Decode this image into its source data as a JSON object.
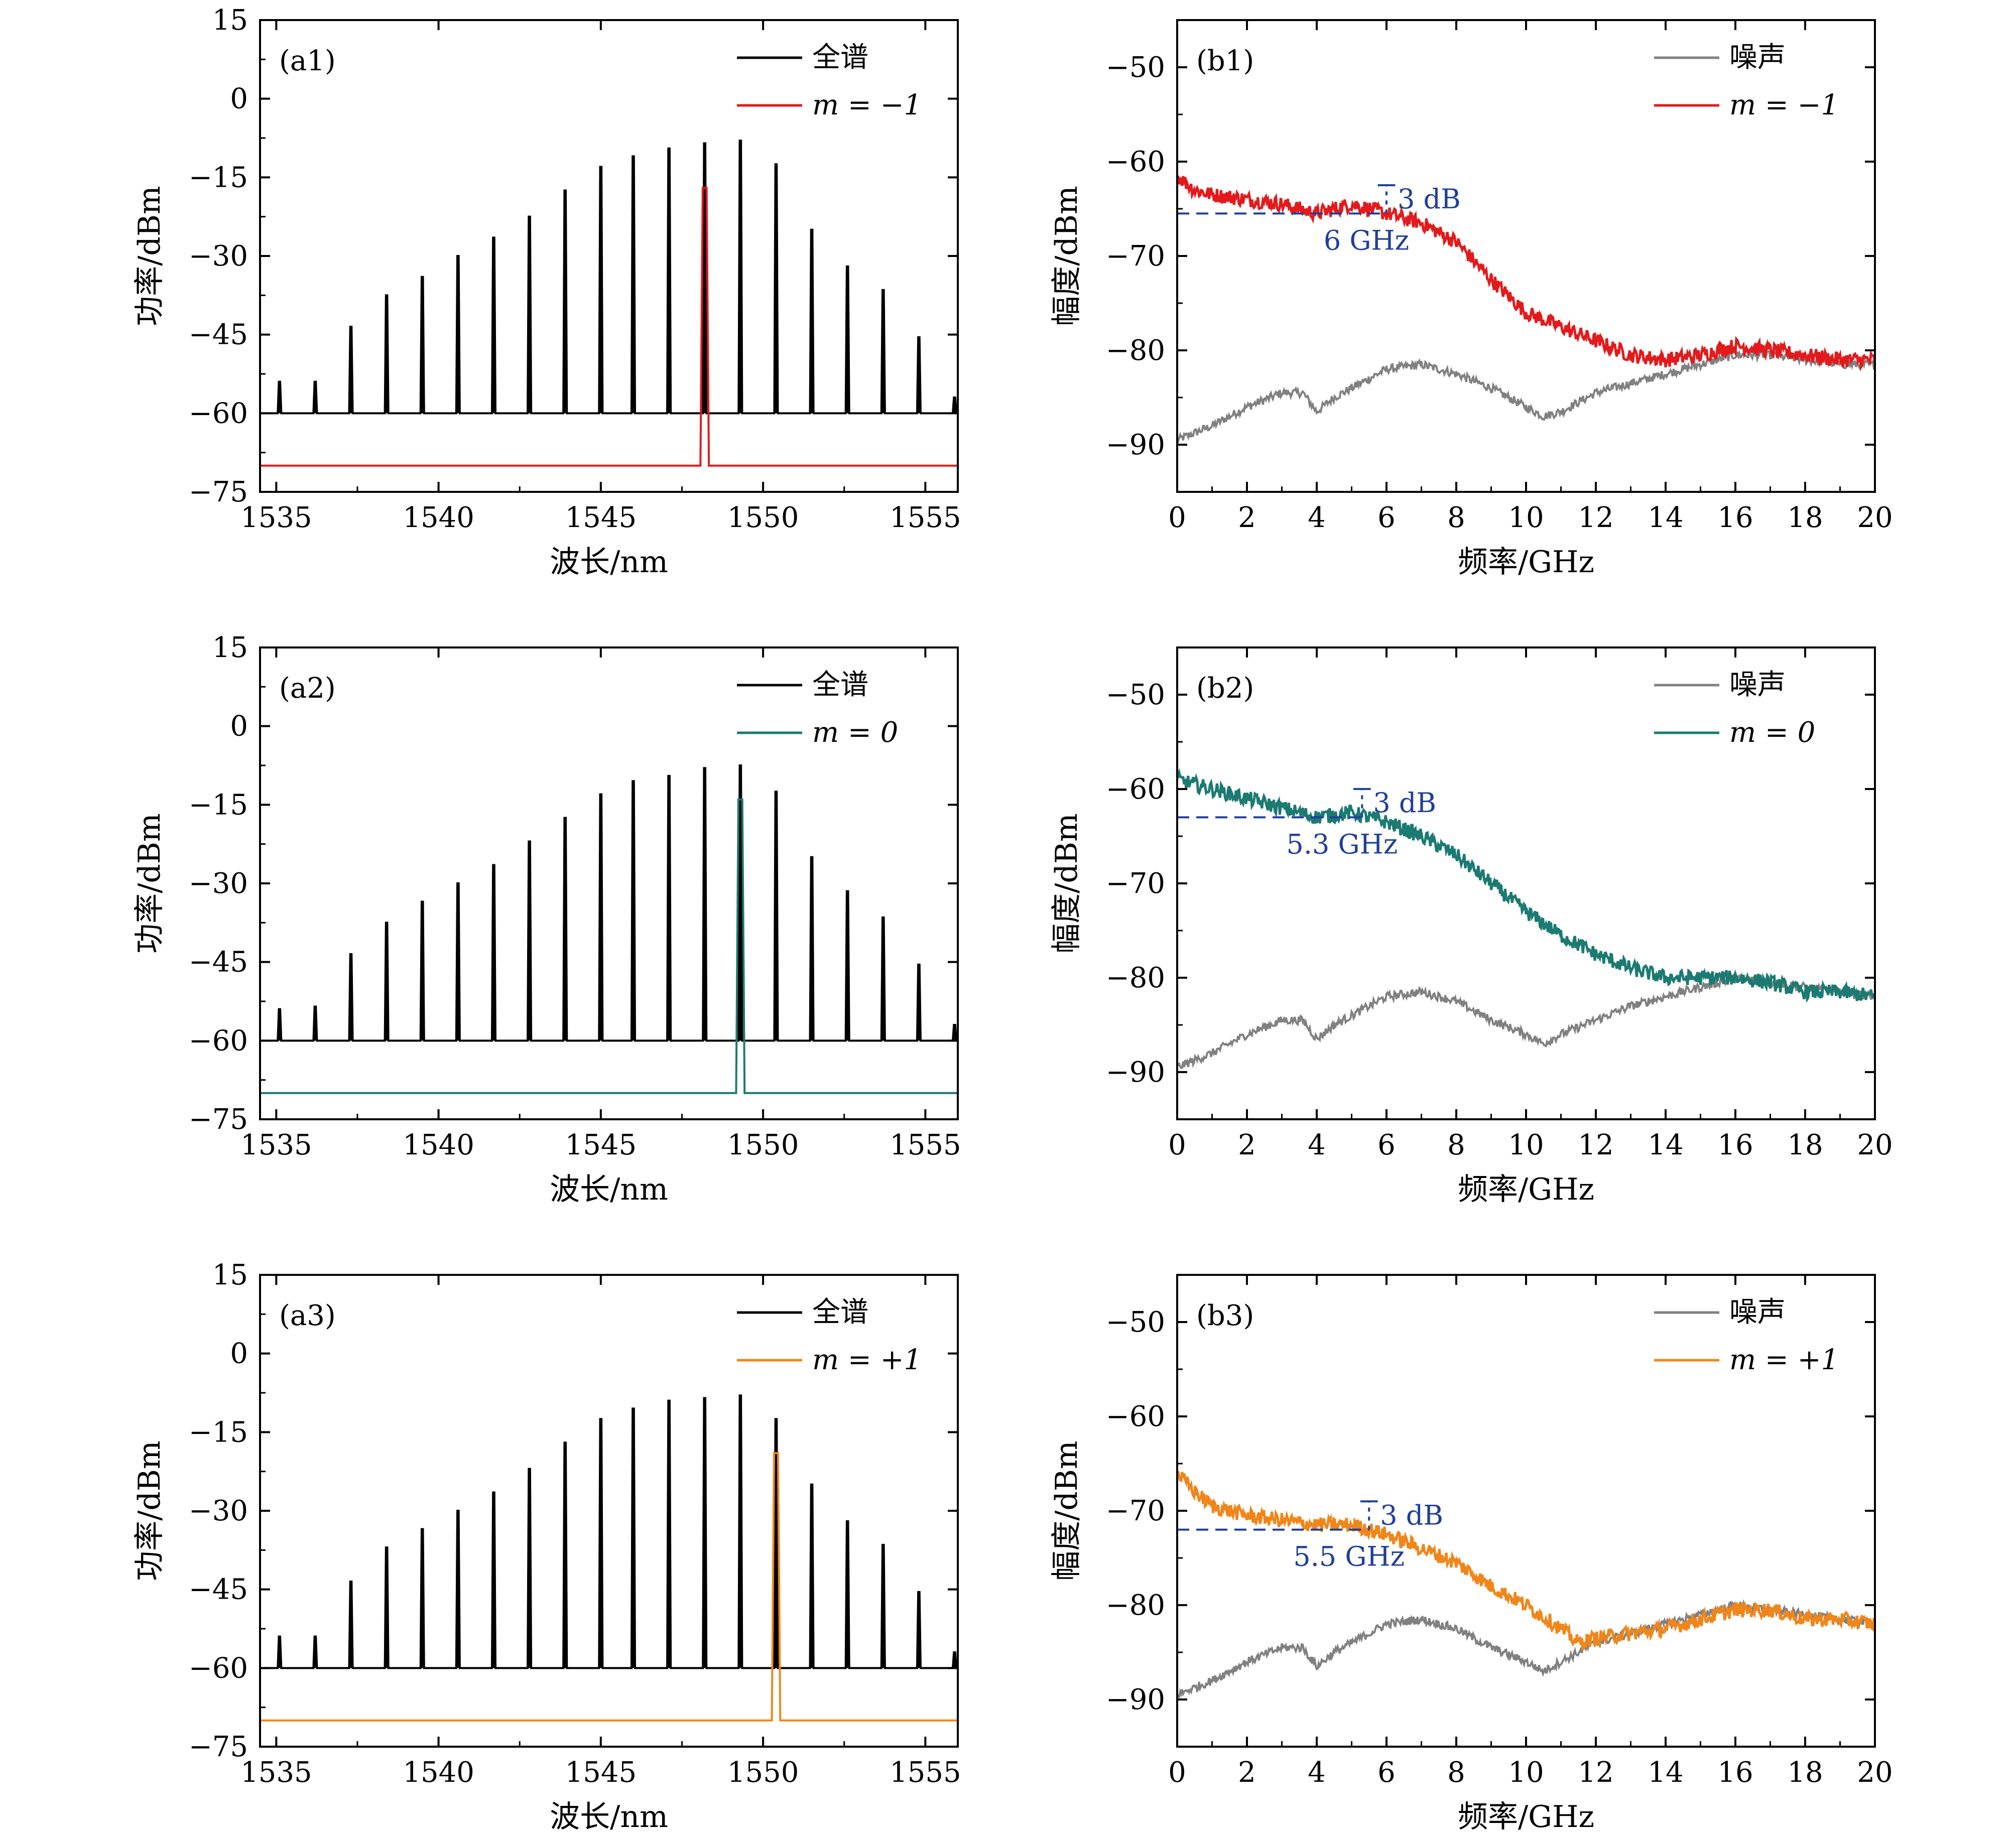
{
  "figure": {
    "panels_order": [
      "a1",
      "b1",
      "a2",
      "b2",
      "a3",
      "b3"
    ]
  },
  "colors": {
    "full_spectrum": "#000000",
    "m_minus1": "#e31a1c",
    "m_0": "#1b7a72",
    "m_plus1": "#f0861a",
    "noise": "#808080",
    "annotation": "#1f3f99"
  },
  "chart_data": [
    {
      "id": "a1",
      "type": "line",
      "panel_label": "(a1)",
      "xlabel": "波长/nm",
      "ylabel": "功率/dBm",
      "xlim": [
        1534.5,
        1556
      ],
      "ylim": [
        -75,
        15
      ],
      "xticks": [
        1535,
        1540,
        1545,
        1550,
        1555
      ],
      "yticks": [
        15,
        0,
        -15,
        -30,
        -45,
        -60,
        -75
      ],
      "comb": {
        "baseline": -60,
        "lines": [
          {
            "x": 1535.1,
            "y": -54
          },
          {
            "x": 1536.2,
            "y": -54
          },
          {
            "x": 1537.3,
            "y": -43.5
          },
          {
            "x": 1538.4,
            "y": -37.5
          },
          {
            "x": 1539.5,
            "y": -34
          },
          {
            "x": 1540.6,
            "y": -30
          },
          {
            "x": 1541.7,
            "y": -26.5
          },
          {
            "x": 1542.8,
            "y": -22.5
          },
          {
            "x": 1543.9,
            "y": -17.5
          },
          {
            "x": 1545.0,
            "y": -13
          },
          {
            "x": 1546.0,
            "y": -11
          },
          {
            "x": 1547.1,
            "y": -9.5
          },
          {
            "x": 1548.2,
            "y": -8.5
          },
          {
            "x": 1549.3,
            "y": -8
          },
          {
            "x": 1550.4,
            "y": -12.5
          },
          {
            "x": 1551.5,
            "y": -25
          },
          {
            "x": 1552.6,
            "y": -32
          },
          {
            "x": 1553.7,
            "y": -36.5
          },
          {
            "x": 1554.8,
            "y": -45.5
          },
          {
            "x": 1555.9,
            "y": -57
          }
        ]
      },
      "filtered": {
        "x": 1548.2,
        "peak": -17,
        "baseline": -70
      },
      "legend": [
        {
          "label": "全谱",
          "color_key": "full_spectrum",
          "italic": false
        },
        {
          "label": "m = −1",
          "color_key": "m_minus1",
          "italic": true
        }
      ]
    },
    {
      "id": "b1",
      "type": "line",
      "panel_label": "(b1)",
      "xlabel": "频率/GHz",
      "ylabel": "幅度/dBm",
      "xlim": [
        0,
        20
      ],
      "ylim": [
        -95,
        -45
      ],
      "xticks": [
        0,
        2,
        4,
        6,
        8,
        10,
        12,
        14,
        16,
        18,
        20
      ],
      "yticks": [
        -50,
        -60,
        -70,
        -80,
        -90
      ],
      "signal": [
        [
          0,
          -61.5
        ],
        [
          0.5,
          -63
        ],
        [
          1,
          -63.5
        ],
        [
          2,
          -64
        ],
        [
          3,
          -64.5
        ],
        [
          4,
          -65.5
        ],
        [
          5,
          -64.5
        ],
        [
          6,
          -65.5
        ],
        [
          7,
          -66.5
        ],
        [
          8,
          -68.5
        ],
        [
          9,
          -72.5
        ],
        [
          10,
          -76
        ],
        [
          11,
          -77.5
        ],
        [
          12,
          -79
        ],
        [
          13,
          -80.5
        ],
        [
          14,
          -81
        ],
        [
          15,
          -80.5
        ],
        [
          16,
          -79.5
        ],
        [
          17,
          -80
        ],
        [
          18,
          -80.5
        ],
        [
          19,
          -81
        ],
        [
          20,
          -81
        ]
      ],
      "noise": [
        [
          0,
          -89.5
        ],
        [
          1,
          -88
        ],
        [
          2,
          -86
        ],
        [
          3,
          -84.5
        ],
        [
          3.6,
          -84.5
        ],
        [
          4,
          -86.5
        ],
        [
          4.5,
          -85
        ],
        [
          5,
          -84
        ],
        [
          6,
          -82
        ],
        [
          7,
          -81.5
        ],
        [
          8,
          -82.5
        ],
        [
          9,
          -84
        ],
        [
          10,
          -86
        ],
        [
          10.5,
          -87
        ],
        [
          11,
          -86.5
        ],
        [
          12,
          -84.5
        ],
        [
          13,
          -83.5
        ],
        [
          14,
          -82.5
        ],
        [
          15,
          -81.5
        ],
        [
          16,
          -80.5
        ],
        [
          17,
          -80.5
        ],
        [
          18,
          -81
        ],
        [
          19,
          -81.5
        ],
        [
          20,
          -81.5
        ]
      ],
      "annotation": {
        "freq": 6,
        "level_3db": -65.5,
        "db_text": "3 dB",
        "freq_text": "6 GHz"
      },
      "legend": [
        {
          "label": "噪声",
          "color_key": "noise",
          "italic": false
        },
        {
          "label": "m = −1",
          "color_key": "m_minus1",
          "italic": true
        }
      ]
    },
    {
      "id": "a2",
      "type": "line",
      "panel_label": "(a2)",
      "xlabel": "波长/nm",
      "ylabel": "功率/dBm",
      "xlim": [
        1534.5,
        1556
      ],
      "ylim": [
        -75,
        15
      ],
      "xticks": [
        1535,
        1540,
        1545,
        1550,
        1555
      ],
      "yticks": [
        15,
        0,
        -15,
        -30,
        -45,
        -60,
        -75
      ],
      "comb": {
        "baseline": -60,
        "lines": [
          {
            "x": 1535.1,
            "y": -54
          },
          {
            "x": 1536.2,
            "y": -53.5
          },
          {
            "x": 1537.3,
            "y": -43.5
          },
          {
            "x": 1538.4,
            "y": -37.5
          },
          {
            "x": 1539.5,
            "y": -33.5
          },
          {
            "x": 1540.6,
            "y": -30
          },
          {
            "x": 1541.7,
            "y": -26.5
          },
          {
            "x": 1542.8,
            "y": -22
          },
          {
            "x": 1543.9,
            "y": -17.5
          },
          {
            "x": 1545.0,
            "y": -13
          },
          {
            "x": 1546.0,
            "y": -10.5
          },
          {
            "x": 1547.1,
            "y": -9.5
          },
          {
            "x": 1548.2,
            "y": -8
          },
          {
            "x": 1549.3,
            "y": -7.5
          },
          {
            "x": 1550.4,
            "y": -12.5
          },
          {
            "x": 1551.5,
            "y": -25
          },
          {
            "x": 1552.6,
            "y": -31.5
          },
          {
            "x": 1553.7,
            "y": -36.5
          },
          {
            "x": 1554.8,
            "y": -45.5
          },
          {
            "x": 1555.9,
            "y": -57
          }
        ]
      },
      "filtered": {
        "x": 1549.3,
        "peak": -14,
        "baseline": -70
      },
      "legend": [
        {
          "label": "全谱",
          "color_key": "full_spectrum",
          "italic": false
        },
        {
          "label": "m = 0",
          "color_key": "m_0",
          "italic": true
        }
      ]
    },
    {
      "id": "b2",
      "type": "line",
      "panel_label": "(b2)",
      "xlabel": "频率/GHz",
      "ylabel": "幅度/dBm",
      "xlim": [
        0,
        20
      ],
      "ylim": [
        -95,
        -45
      ],
      "xticks": [
        0,
        2,
        4,
        6,
        8,
        10,
        12,
        14,
        16,
        18,
        20
      ],
      "yticks": [
        -50,
        -60,
        -70,
        -80,
        -90
      ],
      "signal": [
        [
          0,
          -59
        ],
        [
          1,
          -60
        ],
        [
          2,
          -61
        ],
        [
          3,
          -62
        ],
        [
          4,
          -63
        ],
        [
          5,
          -62.5
        ],
        [
          6,
          -63.5
        ],
        [
          7,
          -65
        ],
        [
          8,
          -67
        ],
        [
          9,
          -70
        ],
        [
          10,
          -73
        ],
        [
          11,
          -75.5
        ],
        [
          12,
          -77.5
        ],
        [
          13,
          -79
        ],
        [
          14,
          -80
        ],
        [
          15,
          -80
        ],
        [
          16,
          -80
        ],
        [
          17,
          -80.5
        ],
        [
          18,
          -81.5
        ],
        [
          19,
          -81.5
        ],
        [
          20,
          -82
        ]
      ],
      "noise": [
        [
          0,
          -89.5
        ],
        [
          1,
          -88
        ],
        [
          2,
          -86
        ],
        [
          3,
          -84.5
        ],
        [
          3.6,
          -84.5
        ],
        [
          4,
          -86.5
        ],
        [
          4.5,
          -85
        ],
        [
          5,
          -84
        ],
        [
          6,
          -82
        ],
        [
          7,
          -81.5
        ],
        [
          8,
          -82.5
        ],
        [
          9,
          -84.5
        ],
        [
          10,
          -86
        ],
        [
          10.5,
          -87
        ],
        [
          11,
          -86
        ],
        [
          12,
          -84.5
        ],
        [
          13,
          -83
        ],
        [
          14,
          -82
        ],
        [
          15,
          -81
        ],
        [
          16,
          -80
        ],
        [
          17,
          -80.5
        ],
        [
          18,
          -81
        ],
        [
          19,
          -81.5
        ],
        [
          20,
          -82
        ]
      ],
      "annotation": {
        "freq": 5.3,
        "level_3db": -63,
        "db_text": "3 dB",
        "freq_text": "5.3 GHz"
      },
      "legend": [
        {
          "label": "噪声",
          "color_key": "noise",
          "italic": false
        },
        {
          "label": "m = 0",
          "color_key": "m_0",
          "italic": true
        }
      ]
    },
    {
      "id": "a3",
      "type": "line",
      "panel_label": "(a3)",
      "xlabel": "波长/nm",
      "ylabel": "功率/dBm",
      "xlim": [
        1534.5,
        1556
      ],
      "ylim": [
        -75,
        15
      ],
      "xticks": [
        1535,
        1540,
        1545,
        1550,
        1555
      ],
      "yticks": [
        15,
        0,
        -15,
        -30,
        -45,
        -60,
        -75
      ],
      "comb": {
        "baseline": -60,
        "lines": [
          {
            "x": 1535.1,
            "y": -54
          },
          {
            "x": 1536.2,
            "y": -54
          },
          {
            "x": 1537.3,
            "y": -43.5
          },
          {
            "x": 1538.4,
            "y": -37
          },
          {
            "x": 1539.5,
            "y": -33.5
          },
          {
            "x": 1540.6,
            "y": -30
          },
          {
            "x": 1541.7,
            "y": -26.5
          },
          {
            "x": 1542.8,
            "y": -22
          },
          {
            "x": 1543.9,
            "y": -17
          },
          {
            "x": 1545.0,
            "y": -12.5
          },
          {
            "x": 1546.0,
            "y": -10.5
          },
          {
            "x": 1547.1,
            "y": -9
          },
          {
            "x": 1548.2,
            "y": -8.5
          },
          {
            "x": 1549.3,
            "y": -8
          },
          {
            "x": 1550.4,
            "y": -12.5
          },
          {
            "x": 1551.5,
            "y": -25
          },
          {
            "x": 1552.6,
            "y": -32
          },
          {
            "x": 1553.7,
            "y": -36.5
          },
          {
            "x": 1554.8,
            "y": -45.5
          },
          {
            "x": 1555.9,
            "y": -57
          }
        ]
      },
      "filtered": {
        "x": 1550.4,
        "peak": -19,
        "baseline": -70
      },
      "legend": [
        {
          "label": "全谱",
          "color_key": "full_spectrum",
          "italic": false
        },
        {
          "label": "m = +1",
          "color_key": "m_plus1",
          "italic": true
        }
      ]
    },
    {
      "id": "b3",
      "type": "line",
      "panel_label": "(b3)",
      "xlabel": "频率/GHz",
      "ylabel": "幅度/dBm",
      "xlim": [
        0,
        20
      ],
      "ylim": [
        -95,
        -45
      ],
      "xticks": [
        0,
        2,
        4,
        6,
        8,
        10,
        12,
        14,
        16,
        18,
        20
      ],
      "yticks": [
        -50,
        -60,
        -70,
        -80,
        -90
      ],
      "signal": [
        [
          0,
          -66
        ],
        [
          0.5,
          -68
        ],
        [
          1,
          -69.5
        ],
        [
          2,
          -70.5
        ],
        [
          3,
          -71
        ],
        [
          4,
          -71.5
        ],
        [
          5,
          -71.5
        ],
        [
          6,
          -72.5
        ],
        [
          7,
          -74
        ],
        [
          8,
          -75.5
        ],
        [
          9,
          -78
        ],
        [
          10,
          -80
        ],
        [
          11,
          -82.5
        ],
        [
          11.5,
          -84
        ],
        [
          12,
          -83.5
        ],
        [
          13,
          -83
        ],
        [
          14,
          -82.5
        ],
        [
          15,
          -81.5
        ],
        [
          16,
          -80.5
        ],
        [
          17,
          -80.5
        ],
        [
          18,
          -81.5
        ],
        [
          19,
          -81.5
        ],
        [
          20,
          -82
        ]
      ],
      "noise": [
        [
          0,
          -89.5
        ],
        [
          1,
          -88
        ],
        [
          2,
          -86
        ],
        [
          3,
          -84.5
        ],
        [
          3.6,
          -84.5
        ],
        [
          4,
          -86.5
        ],
        [
          4.5,
          -85
        ],
        [
          5,
          -84
        ],
        [
          6,
          -82
        ],
        [
          7,
          -81.5
        ],
        [
          8,
          -82.5
        ],
        [
          9,
          -84.5
        ],
        [
          10,
          -86
        ],
        [
          10.5,
          -87
        ],
        [
          11,
          -86
        ],
        [
          12,
          -84
        ],
        [
          13,
          -83
        ],
        [
          14,
          -82
        ],
        [
          15,
          -81
        ],
        [
          16,
          -80
        ],
        [
          17,
          -80.5
        ],
        [
          18,
          -81
        ],
        [
          19,
          -81.5
        ],
        [
          20,
          -82
        ]
      ],
      "annotation": {
        "freq": 5.5,
        "level_3db": -72,
        "db_text": "3 dB",
        "freq_text": "5.5 GHz"
      },
      "legend": [
        {
          "label": "噪声",
          "color_key": "noise",
          "italic": false
        },
        {
          "label": "m = +1",
          "color_key": "m_plus1",
          "italic": true
        }
      ]
    }
  ]
}
